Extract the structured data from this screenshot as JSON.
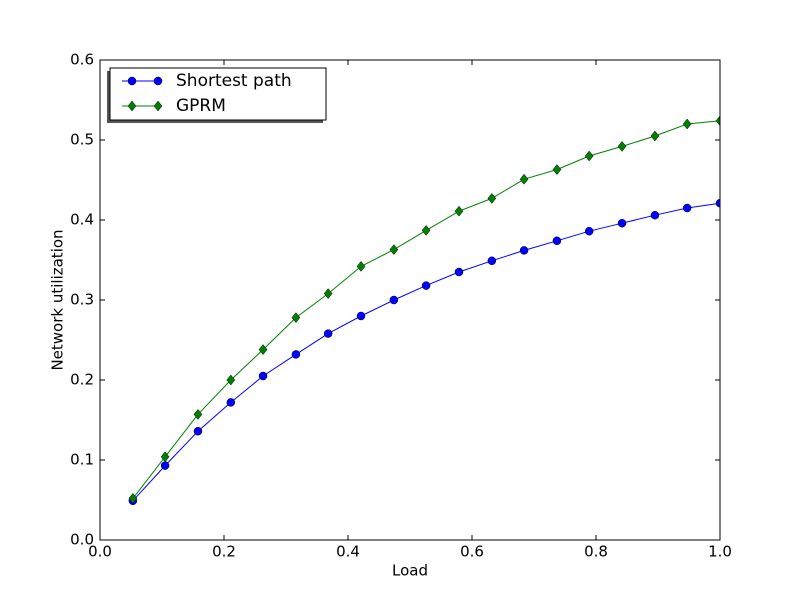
{
  "chart_data": {
    "type": "line",
    "xlabel": "Load",
    "ylabel": "Network utilization",
    "x": [
      0.053,
      0.105,
      0.158,
      0.211,
      0.263,
      0.316,
      0.368,
      0.421,
      0.474,
      0.526,
      0.579,
      0.632,
      0.684,
      0.737,
      0.789,
      0.842,
      0.895,
      0.947,
      1.0
    ],
    "series": [
      {
        "name": "Shortest path",
        "color": "#0000ff",
        "marker": "circle",
        "values": [
          0.049,
          0.093,
          0.136,
          0.172,
          0.205,
          0.232,
          0.258,
          0.28,
          0.3,
          0.318,
          0.335,
          0.349,
          0.362,
          0.374,
          0.386,
          0.396,
          0.406,
          0.415,
          0.421
        ]
      },
      {
        "name": "GPRM",
        "color": "#008000",
        "marker": "diamond",
        "values": [
          0.052,
          0.104,
          0.157,
          0.2,
          0.238,
          0.278,
          0.308,
          0.342,
          0.363,
          0.387,
          0.411,
          0.427,
          0.451,
          0.463,
          0.48,
          0.492,
          0.505,
          0.52,
          0.524
        ]
      }
    ],
    "xlim": [
      0,
      1.0
    ],
    "xticks": [
      {
        "value": 0,
        "label": "0.0"
      },
      0.2,
      0.4,
      0.6,
      0.8,
      {
        "value": 1.0,
        "label": "1.0"
      }
    ],
    "ylim": [
      0,
      0.6
    ],
    "yticks": [
      {
        "value": 0,
        "label": "0.0"
      },
      0.1,
      0.2,
      0.3,
      0.4,
      0.5,
      0.6
    ],
    "legend": "upper left",
    "grid": false
  }
}
